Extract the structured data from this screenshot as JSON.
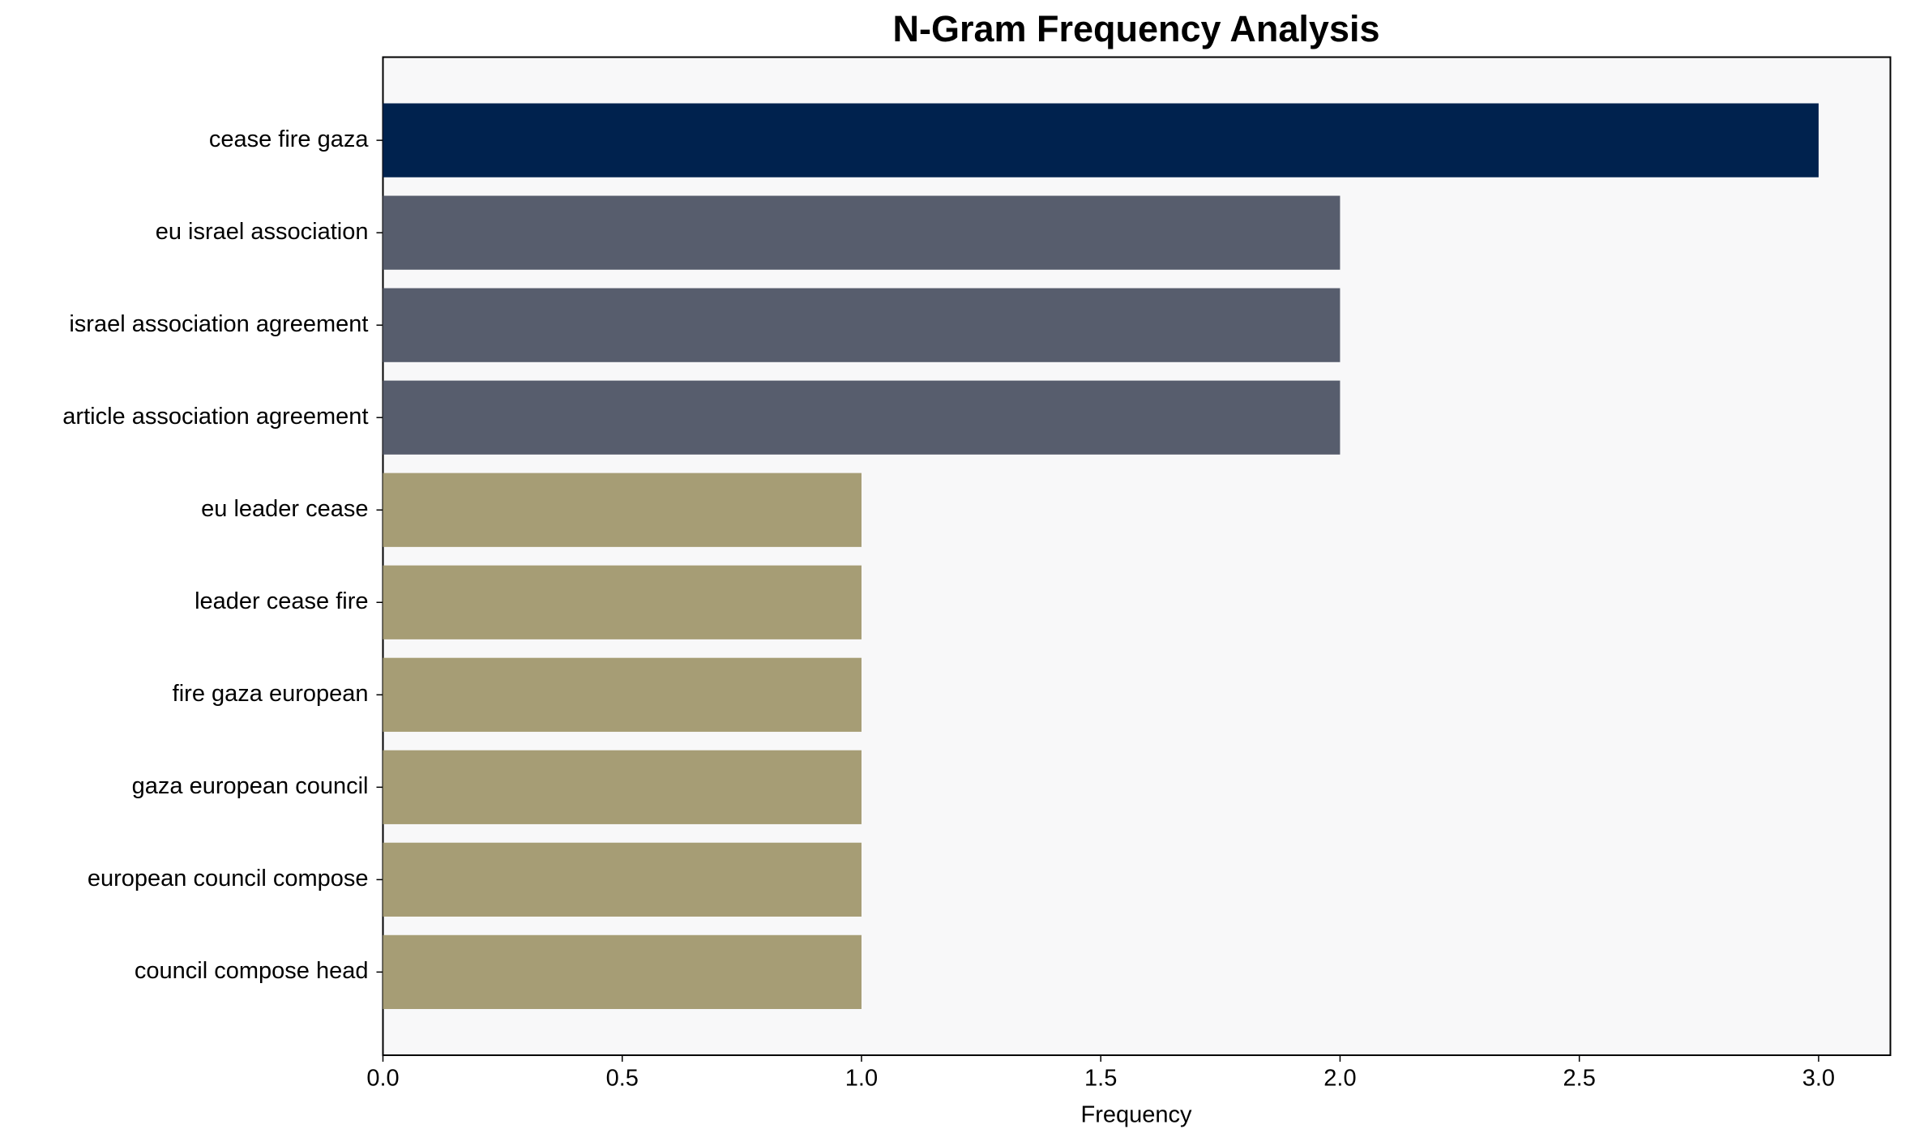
{
  "chart_data": {
    "type": "barh",
    "title": "N-Gram Frequency Analysis",
    "xlabel": "Frequency",
    "categories": [
      "cease fire gaza",
      "eu israel association",
      "israel association agreement",
      "article association agreement",
      "eu leader cease",
      "leader cease fire",
      "fire gaza european",
      "gaza european council",
      "european council compose",
      "council compose head"
    ],
    "values": [
      3,
      2,
      2,
      2,
      1,
      1,
      1,
      1,
      1,
      1
    ],
    "colors": [
      "#00224e",
      "#575d6d",
      "#575d6d",
      "#575d6d",
      "#a69d75",
      "#a69d75",
      "#a69d75",
      "#a69d75",
      "#a69d75",
      "#a69d75"
    ],
    "xlim": [
      0,
      3.15
    ],
    "xticks": [
      {
        "value": 0,
        "label": "0.0"
      },
      {
        "value": 0.5,
        "label": "0.5"
      },
      {
        "value": 1,
        "label": "1.0"
      },
      {
        "value": 1.5,
        "label": "1.5"
      },
      {
        "value": 2,
        "label": "2.0"
      },
      {
        "value": 2.5,
        "label": "2.5"
      },
      {
        "value": 3,
        "label": "3.0"
      }
    ],
    "background": "#f8f8f9"
  }
}
